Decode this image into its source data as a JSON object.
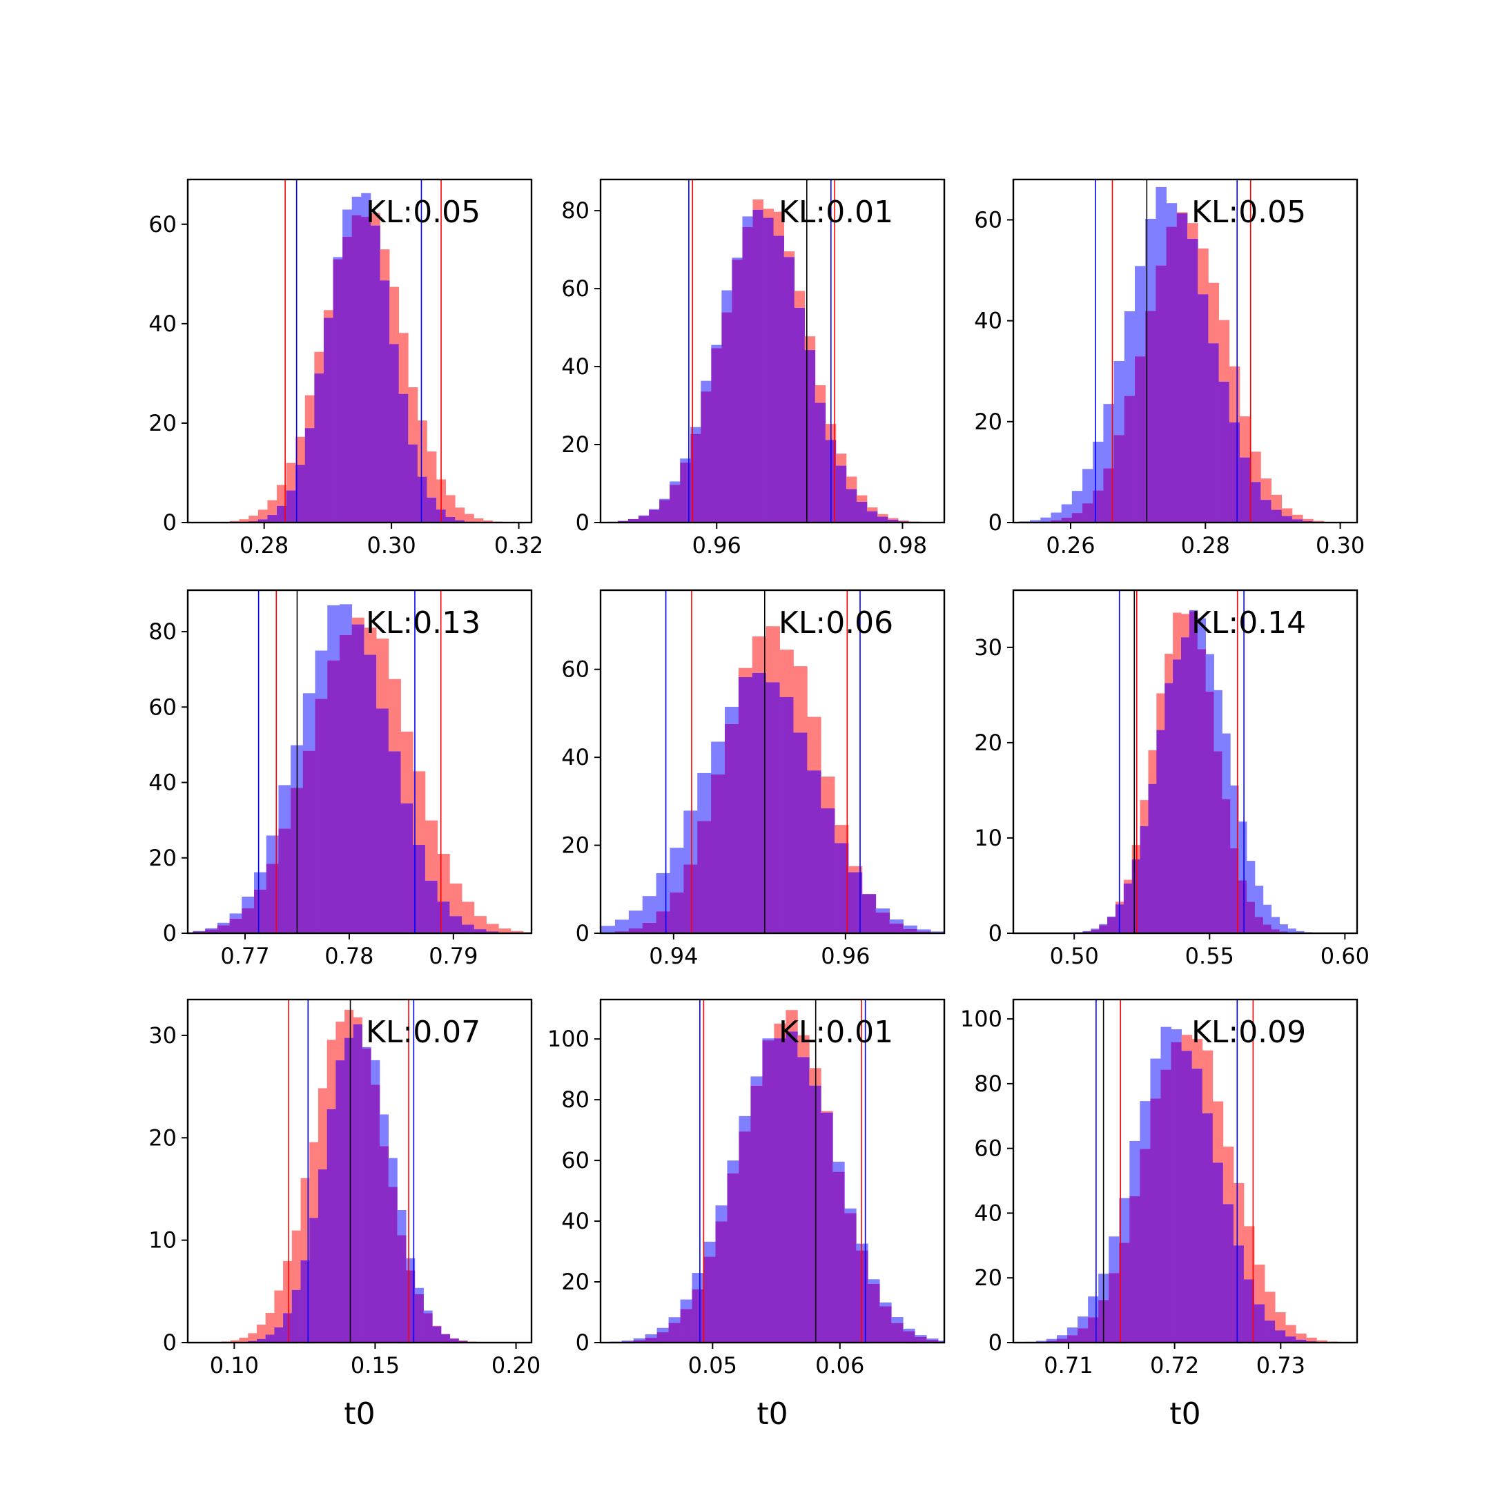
{
  "colors": {
    "red": "#ff0000",
    "blue": "#0000ff",
    "black": "#000000",
    "overlap": "#8a2bc8"
  },
  "chart_data": [
    {
      "type": "histogram",
      "annotation": "KL:0.05",
      "xlabel": "",
      "xlim": [
        0.268,
        0.322
      ],
      "ylim": [
        0,
        69
      ],
      "xticks": [
        0.28,
        0.3,
        0.32
      ],
      "xtick_labels": [
        "0.28",
        "0.30",
        "0.32"
      ],
      "yticks": [
        0,
        20,
        40,
        60
      ],
      "ytick_labels": [
        "0",
        "20",
        "40",
        "60"
      ],
      "dist_red": {
        "mean": 0.2955,
        "sd": 0.0062,
        "peak": 63
      },
      "dist_blue": {
        "mean": 0.295,
        "sd": 0.005,
        "peak": 66
      },
      "lines": {
        "red": [
          0.2833,
          0.3078
        ],
        "blue": [
          0.2851,
          0.3047
        ],
        "black": []
      }
    },
    {
      "type": "histogram",
      "annotation": "KL:0.01",
      "xlabel": "",
      "xlim": [
        0.9475,
        0.9845
      ],
      "ylim": [
        0,
        88
      ],
      "xticks": [
        0.96,
        0.98
      ],
      "xtick_labels": [
        "0.96",
        "0.98"
      ],
      "yticks": [
        0,
        20,
        40,
        60,
        80
      ],
      "ytick_labels": [
        "0",
        "20",
        "40",
        "60",
        "80"
      ],
      "dist_red": {
        "mean": 0.9652,
        "sd": 0.0047,
        "peak": 81
      },
      "dist_blue": {
        "mean": 0.9648,
        "sd": 0.0046,
        "peak": 82
      },
      "lines": {
        "red": [
          0.9574,
          0.9727
        ],
        "blue": [
          0.957,
          0.9723
        ],
        "black": [
          0.9697
        ]
      }
    },
    {
      "type": "histogram",
      "annotation": "KL:0.05",
      "xlabel": "",
      "xlim": [
        0.2515,
        0.3025
      ],
      "ylim": [
        0,
        68
      ],
      "xticks": [
        0.26,
        0.28,
        0.3
      ],
      "xtick_labels": [
        "0.26",
        "0.28",
        "0.30"
      ],
      "yticks": [
        0,
        20,
        40,
        60
      ],
      "ytick_labels": [
        "0",
        "20",
        "40",
        "60"
      ],
      "dist_red": {
        "mean": 0.277,
        "sd": 0.0061,
        "peak": 62
      },
      "dist_blue": {
        "mean": 0.2745,
        "sd": 0.0063,
        "peak": 65
      },
      "lines": {
        "red": [
          0.2662,
          0.2867
        ],
        "blue": [
          0.2637,
          0.2847
        ],
        "black": [
          0.2713
        ]
      }
    },
    {
      "type": "histogram",
      "annotation": "KL:0.13",
      "xlabel": "",
      "xlim": [
        0.7645,
        0.7975
      ],
      "ylim": [
        0,
        91
      ],
      "xticks": [
        0.77,
        0.78,
        0.79
      ],
      "xtick_labels": [
        "0.77",
        "0.78",
        "0.79"
      ],
      "yticks": [
        0,
        20,
        40,
        60,
        80
      ],
      "ytick_labels": [
        "0",
        "20",
        "40",
        "60",
        "80"
      ],
      "dist_red": {
        "mean": 0.781,
        "sd": 0.0048,
        "peak": 84
      },
      "dist_blue": {
        "mean": 0.7795,
        "sd": 0.0044,
        "peak": 88
      },
      "lines": {
        "red": [
          0.773,
          0.7888
        ],
        "blue": [
          0.7713,
          0.7863
        ],
        "black": [
          0.775
        ]
      }
    },
    {
      "type": "histogram",
      "annotation": "KL:0.06",
      "xlabel": "",
      "xlim": [
        0.9315,
        0.9715
      ],
      "ylim": [
        0,
        78
      ],
      "xticks": [
        0.94,
        0.96
      ],
      "xtick_labels": [
        "0.94",
        "0.96"
      ],
      "yticks": [
        0,
        20,
        40,
        60
      ],
      "ytick_labels": [
        "0",
        "20",
        "40",
        "60"
      ],
      "dist_red": {
        "mean": 0.9515,
        "sd": 0.0055,
        "peak": 70
      },
      "dist_blue": {
        "mean": 0.95,
        "sd": 0.0066,
        "peak": 58
      },
      "lines": {
        "red": [
          0.9421,
          0.9602
        ],
        "blue": [
          0.9391,
          0.9617
        ],
        "black": [
          0.9506
        ]
      }
    },
    {
      "type": "histogram",
      "annotation": "KL:0.14",
      "xlabel": "",
      "xlim": [
        0.4775,
        0.6045
      ],
      "ylim": [
        0,
        36
      ],
      "xticks": [
        0.5,
        0.55,
        0.6
      ],
      "xtick_labels": [
        "0.50",
        "0.55",
        "0.60"
      ],
      "yticks": [
        0,
        10,
        20,
        30
      ],
      "ytick_labels": [
        "0",
        "10",
        "20",
        "30"
      ],
      "dist_red": {
        "mean": 0.541,
        "sd": 0.0112,
        "peak": 34
      },
      "dist_blue": {
        "mean": 0.544,
        "sd": 0.0125,
        "peak": 33
      },
      "lines": {
        "red": [
          0.5231,
          0.5603
        ],
        "blue": [
          0.5167,
          0.5627
        ],
        "black": [
          0.5222
        ]
      }
    },
    {
      "type": "histogram",
      "annotation": "KL:0.07",
      "xlabel": "t0",
      "xlim": [
        0.0835,
        0.2055
      ],
      "ylim": [
        0,
        33.5
      ],
      "xticks": [
        0.1,
        0.15,
        0.2
      ],
      "xtick_labels": [
        "0.10",
        "0.15",
        "0.20"
      ],
      "yticks": [
        0,
        10,
        20,
        30
      ],
      "ytick_labels": [
        "0",
        "10",
        "20",
        "30"
      ],
      "dist_red": {
        "mean": 0.1405,
        "sd": 0.0128,
        "peak": 32
      },
      "dist_blue": {
        "mean": 0.144,
        "sd": 0.0115,
        "peak": 31
      },
      "lines": {
        "red": [
          0.1193,
          0.1619
        ],
        "blue": [
          0.1262,
          0.1637
        ],
        "black": [
          0.1412
        ]
      }
    },
    {
      "type": "histogram",
      "annotation": "KL:0.01",
      "xlabel": "t0",
      "xlim": [
        0.0412,
        0.0682
      ],
      "ylim": [
        0,
        113
      ],
      "xticks": [
        0.05,
        0.06
      ],
      "xtick_labels": [
        "0.05",
        "0.06"
      ],
      "yticks": [
        0,
        20,
        40,
        60,
        80,
        100
      ],
      "ytick_labels": [
        "0",
        "20",
        "40",
        "60",
        "80",
        "100"
      ],
      "dist_red": {
        "mean": 0.0558,
        "sd": 0.0037,
        "peak": 106
      },
      "dist_blue": {
        "mean": 0.0557,
        "sd": 0.0039,
        "peak": 104
      },
      "lines": {
        "red": [
          0.0493,
          0.0617
        ],
        "blue": [
          0.049,
          0.062
        ],
        "black": [
          0.0581
        ]
      }
    },
    {
      "type": "histogram",
      "annotation": "KL:0.09",
      "xlabel": "t0",
      "xlim": [
        0.7048,
        0.7372
      ],
      "ylim": [
        0,
        106
      ],
      "xticks": [
        0.71,
        0.72,
        0.73
      ],
      "xtick_labels": [
        "0.71",
        "0.72",
        "0.73"
      ],
      "yticks": [
        0,
        20,
        40,
        60,
        80,
        100
      ],
      "ytick_labels": [
        "0",
        "20",
        "40",
        "60",
        "80",
        "100"
      ],
      "dist_red": {
        "mean": 0.7213,
        "sd": 0.004,
        "peak": 98
      },
      "dist_blue": {
        "mean": 0.72,
        "sd": 0.0039,
        "peak": 96
      },
      "lines": {
        "red": [
          0.7149,
          0.7274
        ],
        "blue": [
          0.7126,
          0.7259
        ],
        "black": [
          0.7133
        ]
      }
    }
  ]
}
